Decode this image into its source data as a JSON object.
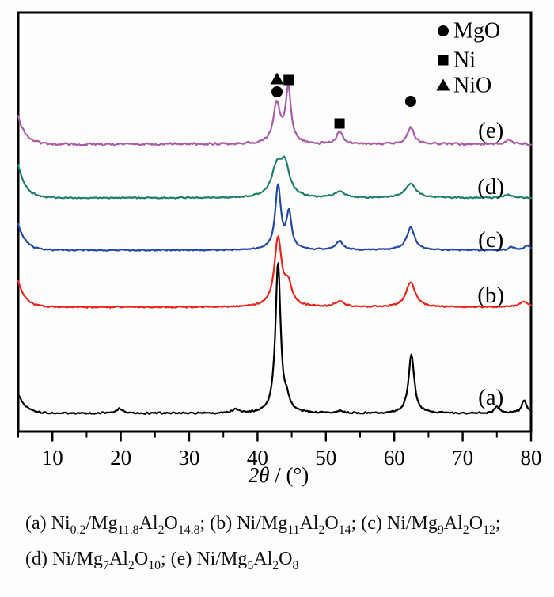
{
  "chart_data": {
    "type": "line",
    "title": "",
    "xlabel_italic": "2θ",
    "xlabel_rest": " / (°)",
    "ylabel": "",
    "x_range": [
      5,
      80
    ],
    "x_major_ticks": [
      "10",
      "20",
      "30",
      "40",
      "50",
      "60",
      "70",
      "80"
    ],
    "x_minor_step": 5,
    "grid": false,
    "legend_position": "top-right-inside",
    "legend": {
      "items": [
        {
          "marker": "circle",
          "label": "MgO"
        },
        {
          "marker": "square",
          "label": "Ni"
        },
        {
          "marker": "triangle",
          "label": "NiO"
        }
      ]
    },
    "series": [
      {
        "label": "(a)",
        "name": "Ni0.2/Mg11.8Al2O14.8",
        "color": "#000000",
        "offset": 23,
        "edge_height": 25,
        "edge_decay_deg": 1.1,
        "noise": 1.3,
        "label_x_deg": 74,
        "label_y_au": 43,
        "peaks": [
          {
            "c": 19.8,
            "h": 6,
            "w": 1.2
          },
          {
            "c": 36.8,
            "h": 4,
            "w": 1.2
          },
          {
            "c": 43.0,
            "h": 190,
            "w": 0.9
          },
          {
            "c": 44.3,
            "h": 12,
            "w": 0.9
          },
          {
            "c": 52.0,
            "h": 3,
            "w": 1.2
          },
          {
            "c": 62.5,
            "h": 75,
            "w": 1.0
          },
          {
            "c": 75.0,
            "h": 8,
            "w": 1.0
          },
          {
            "c": 79.0,
            "h": 16,
            "w": 0.9
          }
        ]
      },
      {
        "label": "(b)",
        "name": "Ni/Mg11Al2O14",
        "color": "#e8241c",
        "offset": 157,
        "edge_height": 33,
        "edge_decay_deg": 1.1,
        "noise": 1.0,
        "label_x_deg": 74,
        "label_y_au": 172,
        "peaks": [
          {
            "c": 43.0,
            "h": 85,
            "w": 1.3
          },
          {
            "c": 44.5,
            "h": 25,
            "w": 1.3
          },
          {
            "c": 52.0,
            "h": 7,
            "w": 1.6
          },
          {
            "c": 62.4,
            "h": 32,
            "w": 1.6
          },
          {
            "c": 79.0,
            "h": 7,
            "w": 1.5
          }
        ]
      },
      {
        "label": "(c)",
        "name": "Ni/Mg9Al2O12",
        "color": "#2348a6",
        "offset": 229,
        "edge_height": 33,
        "edge_decay_deg": 1.1,
        "noise": 1.0,
        "label_x_deg": 74,
        "label_y_au": 242,
        "peaks": [
          {
            "c": 43.0,
            "h": 80,
            "w": 1.0
          },
          {
            "c": 44.6,
            "h": 45,
            "w": 0.9
          },
          {
            "c": 52.0,
            "h": 11,
            "w": 1.3
          },
          {
            "c": 62.4,
            "h": 29,
            "w": 1.4
          },
          {
            "c": 77.2,
            "h": 4,
            "w": 1.0
          },
          {
            "c": 79.5,
            "h": 6,
            "w": 1.0
          }
        ]
      },
      {
        "label": "(d)",
        "name": "Ni/Mg7Al2O10",
        "color": "#1e7e6e",
        "offset": 295,
        "edge_height": 42,
        "edge_decay_deg": 1.1,
        "noise": 1.0,
        "label_x_deg": 74,
        "label_y_au": 309,
        "peaks": [
          {
            "c": 42.8,
            "h": 36,
            "w": 1.8
          },
          {
            "c": 44.0,
            "h": 38,
            "w": 1.6
          },
          {
            "c": 52.0,
            "h": 8,
            "w": 1.6
          },
          {
            "c": 62.4,
            "h": 18,
            "w": 1.9
          },
          {
            "c": 76.6,
            "h": 4,
            "w": 1.5
          }
        ]
      },
      {
        "label": "(e)",
        "name": "Ni/Mg5Al2O8",
        "color": "#a95ba9",
        "offset": 363,
        "edge_height": 35,
        "edge_decay_deg": 1.1,
        "noise": 1.7,
        "label_x_deg": 74,
        "label_y_au": 380,
        "peaks": [
          {
            "c": 42.8,
            "h": 50,
            "w": 1.2
          },
          {
            "c": 44.5,
            "h": 70,
            "w": 0.95
          },
          {
            "c": 52.0,
            "h": 16,
            "w": 1.0
          },
          {
            "c": 62.4,
            "h": 21,
            "w": 1.2
          },
          {
            "c": 76.6,
            "h": 5,
            "w": 1.2
          }
        ]
      }
    ],
    "annotations": [
      {
        "marker": "triangle",
        "phase": "NiO",
        "x": 42.85,
        "y_au": 445
      },
      {
        "marker": "circle",
        "phase": "MgO",
        "x": 42.85,
        "y_au": 429
      },
      {
        "marker": "square",
        "phase": "Ni",
        "x": 44.55,
        "y_au": 444
      },
      {
        "marker": "square",
        "phase": "Ni",
        "x": 52.0,
        "y_au": 389
      },
      {
        "marker": "circle",
        "phase": "MgO",
        "x": 62.4,
        "y_au": 417
      }
    ]
  },
  "caption": {
    "lines": [
      [
        {
          "t": "(a) Ni"
        },
        {
          "t": "0.2",
          "sub": true
        },
        {
          "t": "/Mg"
        },
        {
          "t": "11.8",
          "sub": true
        },
        {
          "t": "Al"
        },
        {
          "t": "2",
          "sub": true
        },
        {
          "t": "O"
        },
        {
          "t": "14.8",
          "sub": true
        },
        {
          "t": "; (b) Ni/Mg"
        },
        {
          "t": "11",
          "sub": true
        },
        {
          "t": "Al"
        },
        {
          "t": "2",
          "sub": true
        },
        {
          "t": "O"
        },
        {
          "t": "14",
          "sub": true
        },
        {
          "t": "; (c) Ni/Mg"
        },
        {
          "t": "9",
          "sub": true
        },
        {
          "t": "Al"
        },
        {
          "t": "2",
          "sub": true
        },
        {
          "t": "O"
        },
        {
          "t": "12",
          "sub": true
        },
        {
          "t": ";"
        }
      ],
      [
        {
          "t": "(d) Ni/Mg"
        },
        {
          "t": "7",
          "sub": true
        },
        {
          "t": "Al"
        },
        {
          "t": "2",
          "sub": true
        },
        {
          "t": "O"
        },
        {
          "t": "10",
          "sub": true
        },
        {
          "t": "; (e) Ni/Mg"
        },
        {
          "t": "5",
          "sub": true
        },
        {
          "t": "Al"
        },
        {
          "t": "2",
          "sub": true
        },
        {
          "t": "O"
        },
        {
          "t": "8",
          "sub": true
        }
      ]
    ]
  }
}
